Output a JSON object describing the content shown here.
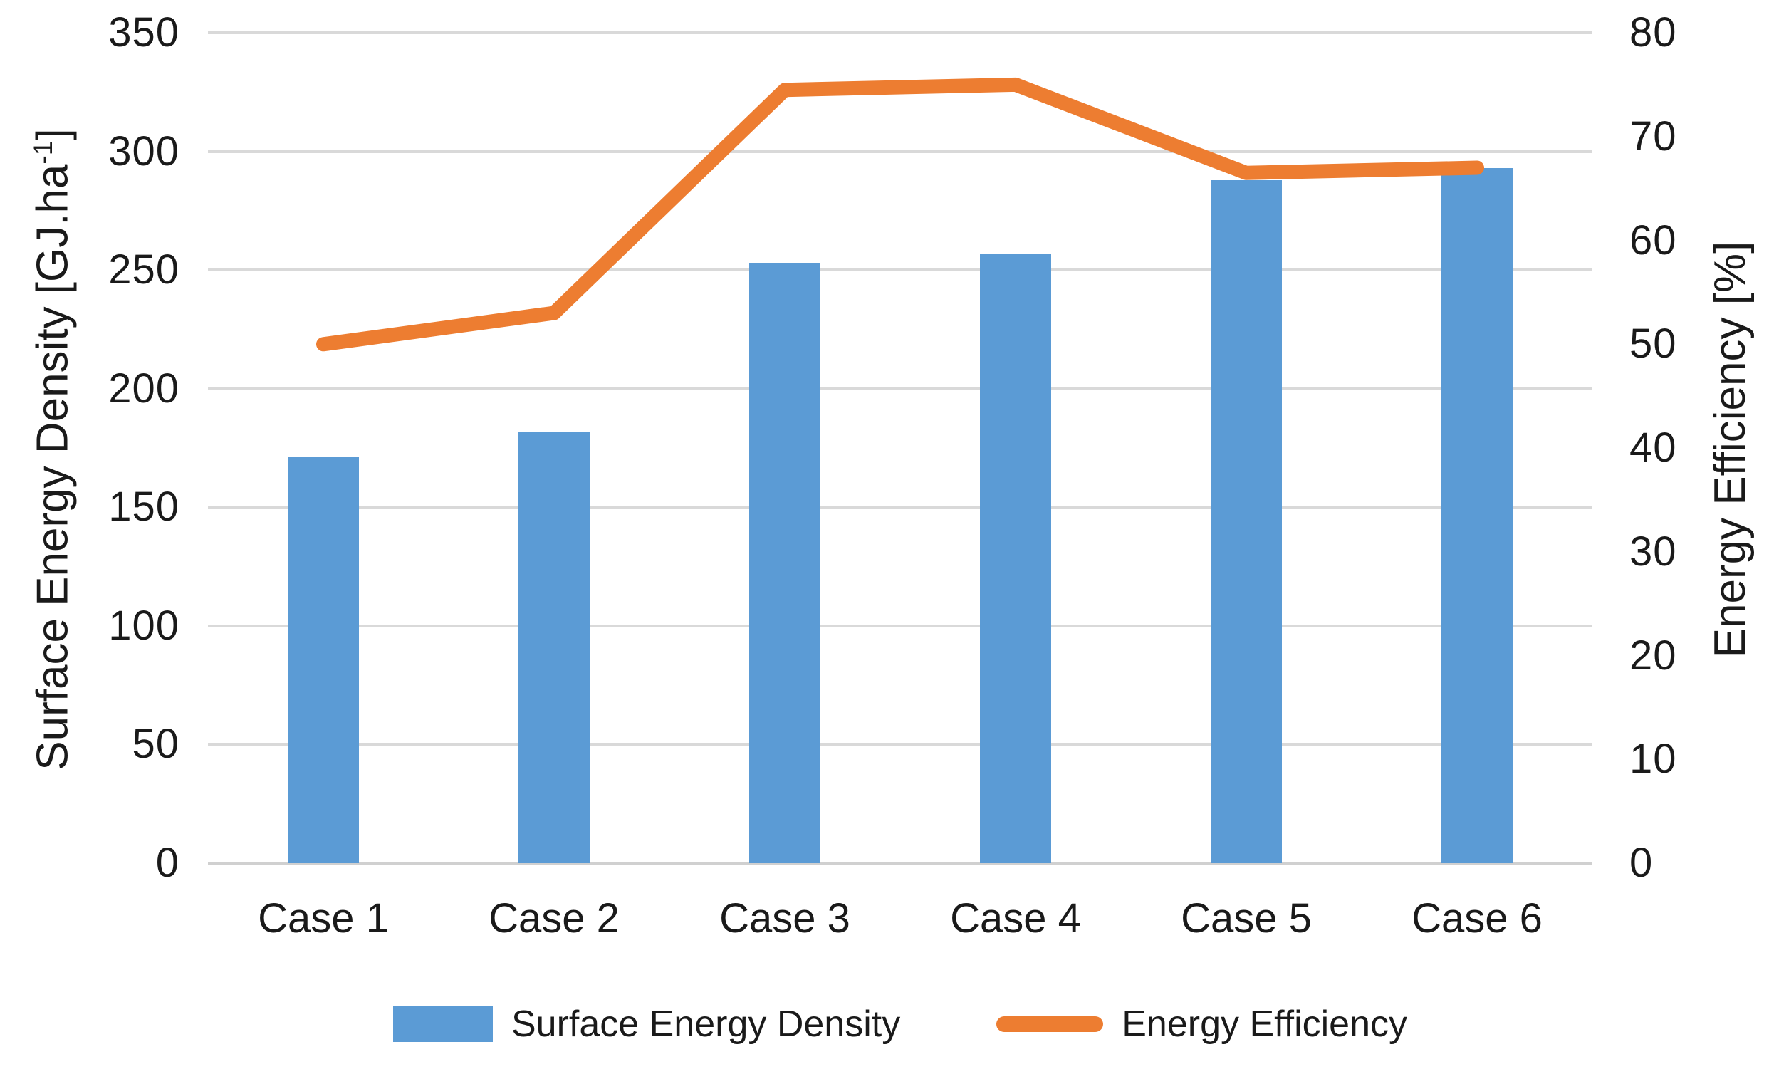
{
  "chart_data": {
    "type": "combo",
    "subtype": "bar+line",
    "categories": [
      "Case 1",
      "Case 2",
      "Case 3",
      "Case 4",
      "Case 5",
      "Case 6"
    ],
    "series": [
      {
        "name": "Surface Energy Density",
        "type": "bar",
        "axis": "left",
        "color": "#5B9BD5",
        "values": [
          171,
          182,
          253,
          257,
          288,
          293
        ]
      },
      {
        "name": "Energy Efficiency",
        "type": "line",
        "axis": "right",
        "color": "#ED7D31",
        "values": [
          50,
          53,
          74.5,
          75,
          66.5,
          67
        ]
      }
    ],
    "left_axis": {
      "label": "Surface Energy Density [GJ.ha-1]",
      "label_main": "Surface Energy Density [GJ.ha",
      "label_sup": "-1",
      "label_end": "]",
      "min": 0,
      "max": 350,
      "tick_step": 50,
      "ticks": [
        "0",
        "50",
        "100",
        "150",
        "200",
        "250",
        "300",
        "350"
      ]
    },
    "right_axis": {
      "label": "Energy Efficiency [%]",
      "min": 0,
      "max": 80,
      "tick_step": 10,
      "ticks": [
        "0",
        "10",
        "20",
        "30",
        "40",
        "50",
        "60",
        "70",
        "80"
      ]
    },
    "grid": true,
    "gridlines": "horizontal",
    "legend_position": "bottom",
    "colors": {
      "bar": "#5B9BD5",
      "line": "#ED7D31",
      "gridline": "#D9D9D9",
      "text": "#1A1A1A",
      "background": "#FFFFFF"
    }
  },
  "legend": {
    "items": [
      {
        "label": "Surface Energy Density",
        "swatch": "bar"
      },
      {
        "label": "Energy Efficiency",
        "swatch": "line"
      }
    ]
  }
}
